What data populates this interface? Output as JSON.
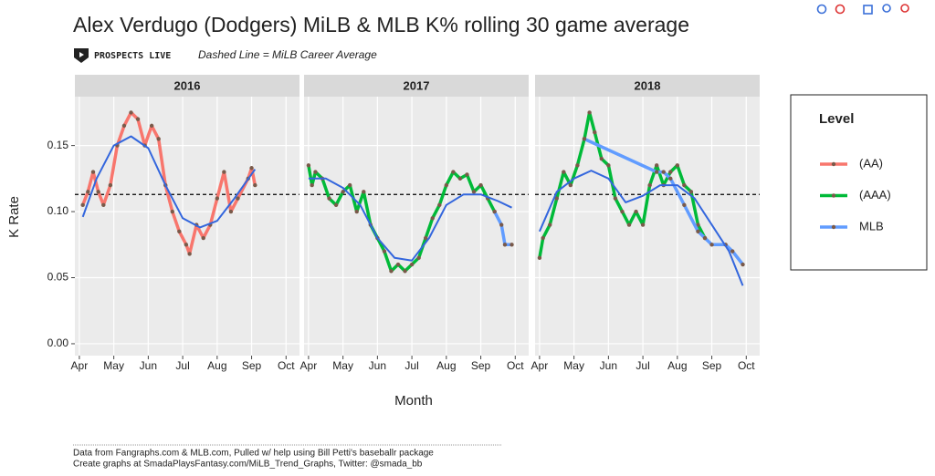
{
  "chart_data": {
    "type": "line",
    "title": "Alex Verdugo (Dodgers) MiLB & MLB K% rolling 30 game average",
    "logo": "PROSPECTS LIVE",
    "subtitle": "Dashed Line = MiLB Career Average",
    "x_label": "Month",
    "y_label": "K Rate",
    "legend_title": "Level",
    "legend": "right",
    "footnotes": [
      "Data from Fangraphs.com & MLB.com, Pulled w/ help using Bill Petti's baseballr package",
      "Create graphs at SmadaPlaysFantasy.com/MiLB_Trend_Graphs, Twitter: @smada_bb"
    ],
    "xlim": [
      3.87,
      10.39
    ],
    "xticks": [
      {
        "value": 4,
        "label": "Apr"
      },
      {
        "value": 5,
        "label": "May"
      },
      {
        "value": 6,
        "label": "Jun"
      },
      {
        "value": 7,
        "label": "Jul"
      },
      {
        "value": 8,
        "label": "Aug"
      },
      {
        "value": 9,
        "label": "Sep"
      },
      {
        "value": 10,
        "label": "Oct"
      }
    ],
    "ylim": [
      -0.009,
      0.187
    ],
    "yticks": [
      {
        "value": 0,
        "label": "0.00"
      },
      {
        "value": 0.05,
        "label": "0.05"
      },
      {
        "value": 0.1,
        "label": "0.10"
      },
      {
        "value": 0.15,
        "label": "0.15"
      }
    ],
    "grid": true,
    "reference_line": 0.113,
    "facets": [
      {
        "title": "2016",
        "smooth": {
          "x": [
            4.1,
            4.5,
            5,
            5.5,
            6,
            6.5,
            7,
            7.5,
            8,
            8.5,
            9.1
          ],
          "values": [
            0.096,
            0.125,
            0.15,
            0.157,
            0.148,
            0.12,
            0.095,
            0.088,
            0.093,
            0.11,
            0.132
          ]
        }
      },
      {
        "title": "2017",
        "smooth": {
          "x": [
            4,
            4.5,
            5,
            5.5,
            6,
            6.5,
            7,
            7.5,
            8,
            8.5,
            9,
            9.5,
            9.9
          ],
          "values": [
            0.125,
            0.125,
            0.118,
            0.105,
            0.08,
            0.065,
            0.063,
            0.08,
            0.105,
            0.113,
            0.113,
            0.108,
            0.103
          ]
        }
      },
      {
        "title": "2018",
        "smooth": {
          "x": [
            4,
            4.5,
            5,
            5.5,
            6,
            6.5,
            7,
            7.5,
            8,
            8.5,
            9,
            9.5,
            9.9
          ],
          "values": [
            0.085,
            0.115,
            0.125,
            0.131,
            0.125,
            0.107,
            0.112,
            0.12,
            0.12,
            0.11,
            0.09,
            0.07,
            0.044
          ]
        }
      }
    ],
    "smooth_color": "#3366dd",
    "series": [
      {
        "name": "(AA)",
        "color": "#f8766d",
        "x": [
          [
            4.1,
            4.25,
            4.4,
            4.55,
            4.7,
            4.9,
            5.1,
            5.3,
            5.5,
            5.7,
            5.9,
            6.1,
            6.3,
            6.5,
            6.7,
            6.9,
            7.1,
            7.2,
            7.4,
            7.6,
            7.8,
            8.0,
            8.2,
            8.4,
            8.6,
            8.9,
            9.0,
            9.1
          ],
          [],
          []
        ],
        "values": [
          [
            0.105,
            0.115,
            0.13,
            0.115,
            0.105,
            0.12,
            0.15,
            0.165,
            0.175,
            0.17,
            0.15,
            0.165,
            0.155,
            0.12,
            0.1,
            0.085,
            0.075,
            0.068,
            0.09,
            0.08,
            0.09,
            0.11,
            0.13,
            0.1,
            0.11,
            0.125,
            0.133,
            0.12
          ],
          [],
          []
        ]
      },
      {
        "name": "(AAA)",
        "color": "#00ba38",
        "x": [
          [],
          [
            4.0,
            4.1,
            4.2,
            4.4,
            4.6,
            4.8,
            5.0,
            5.2,
            5.4,
            5.6,
            5.8,
            6.0,
            6.2,
            6.4,
            6.6,
            6.8,
            7.0,
            7.2,
            7.4,
            7.6,
            7.8,
            8.0,
            8.2,
            8.4,
            8.6,
            8.8,
            9.0,
            9.2,
            9.4
          ],
          [
            4.0,
            4.1,
            4.3,
            4.5,
            4.7,
            4.9,
            5.1,
            5.3,
            5.45,
            5.6,
            5.8,
            6.0,
            6.2,
            6.4,
            6.6,
            6.8,
            7.0,
            7.2,
            7.4,
            7.6,
            7.8,
            8.0,
            8.2,
            8.4,
            8.6,
            8.8
          ]
        ],
        "values": [
          [],
          [
            0.135,
            0.12,
            0.13,
            0.125,
            0.11,
            0.105,
            0.115,
            0.12,
            0.1,
            0.115,
            0.09,
            0.08,
            0.07,
            0.055,
            0.06,
            0.055,
            0.06,
            0.065,
            0.08,
            0.095,
            0.105,
            0.12,
            0.13,
            0.125,
            0.128,
            0.115,
            0.12,
            0.11,
            0.1
          ],
          [
            0.065,
            0.08,
            0.09,
            0.11,
            0.13,
            0.12,
            0.135,
            0.155,
            0.175,
            0.16,
            0.14,
            0.135,
            0.11,
            0.1,
            0.09,
            0.1,
            0.09,
            0.12,
            0.135,
            0.12,
            0.13,
            0.135,
            0.12,
            0.115,
            0.09,
            0.08
          ]
        ]
      },
      {
        "name": "MLB",
        "color": "#619cff",
        "x": [
          [],
          [
            9.4,
            9.6,
            9.7,
            9.9
          ],
          [
            5.3,
            7.4,
            7.6,
            7.8,
            8.2,
            8.6,
            8.8,
            9.0,
            9.4,
            9.6,
            9.9
          ]
        ],
        "values": [
          [],
          [
            0.1,
            0.09,
            0.075,
            0.075
          ],
          [
            0.155,
            0.13,
            0.13,
            0.125,
            0.105,
            0.085,
            0.08,
            0.075,
            0.075,
            0.07,
            0.06
          ]
        ]
      }
    ]
  }
}
